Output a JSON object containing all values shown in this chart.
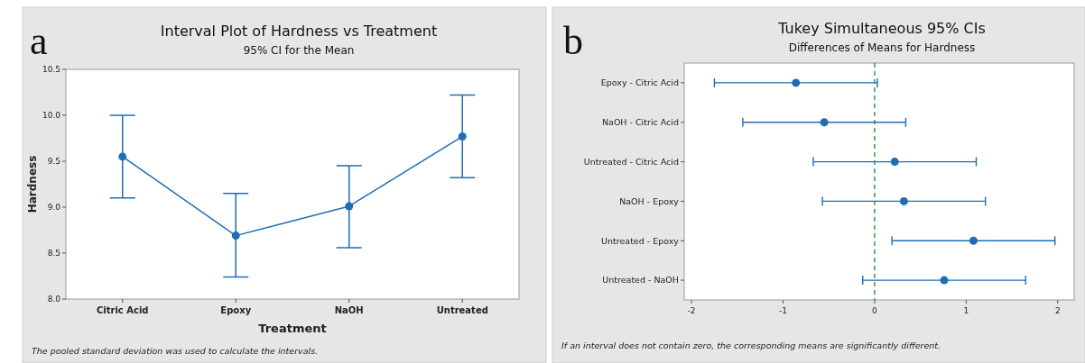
{
  "chart_data": [
    {
      "type": "line",
      "title": "Interval Plot of Hardness vs Treatment",
      "subtitle": "95% CI for the Mean",
      "xlabel": "Treatment",
      "ylabel": "Hardness",
      "annotations": [
        "a",
        "The pooled standard deviation was used to calculate the intervals."
      ],
      "categories": [
        "Citric Acid",
        "Epoxy",
        "NaOH",
        "Untreated"
      ],
      "values": [
        9.55,
        8.69,
        9.01,
        9.77
      ],
      "errors": [
        [
          9.1,
          10.0
        ],
        [
          8.24,
          9.15
        ],
        [
          8.56,
          9.45
        ],
        [
          9.32,
          10.22
        ]
      ],
      "color": "#1f6db5",
      "marker": "circle",
      "ylim": [
        8.0,
        10.5
      ],
      "yticks": [
        {
          "value": 8.0,
          "label": "8.0"
        },
        {
          "value": 8.5,
          "label": "8.5"
        },
        {
          "value": 9.0,
          "label": "9.0"
        },
        {
          "value": 9.5,
          "label": "9.5"
        },
        {
          "value": 10.0,
          "label": "10.0"
        },
        {
          "value": 10.5,
          "label": "10.5"
        }
      ],
      "grid": false
    },
    {
      "type": "scatter",
      "orientation": "horizontal",
      "title": "Tukey Simultaneous 95% CIs",
      "subtitle": "Differences of Means for Hardness",
      "annotations": [
        "b",
        "If an interval does not contain zero, the corresponding means are significantly different."
      ],
      "categories": [
        "Epoxy - Citric Acid",
        "NaOH - Citric Acid",
        "Untreated - Citric Acid",
        "NaOH - Epoxy",
        "Untreated - Epoxy",
        "Untreated - NaOH"
      ],
      "values": [
        -0.86,
        -0.55,
        0.22,
        0.32,
        1.08,
        0.76
      ],
      "errors": [
        [
          -1.75,
          0.03
        ],
        [
          -1.44,
          0.34
        ],
        [
          -0.67,
          1.11
        ],
        [
          -0.57,
          1.21
        ],
        [
          0.19,
          1.97
        ],
        [
          -0.13,
          1.65
        ]
      ],
      "color": "#1f6db5",
      "marker": "circle",
      "xlim": [
        -2.08,
        2.18
      ],
      "xticks": [
        -2,
        -1,
        0,
        1,
        2
      ],
      "ref_lines": [
        {
          "axis": "x",
          "value": 0,
          "color": "#1a8a2e",
          "line_style": "dashed"
        }
      ],
      "grid": false
    }
  ]
}
